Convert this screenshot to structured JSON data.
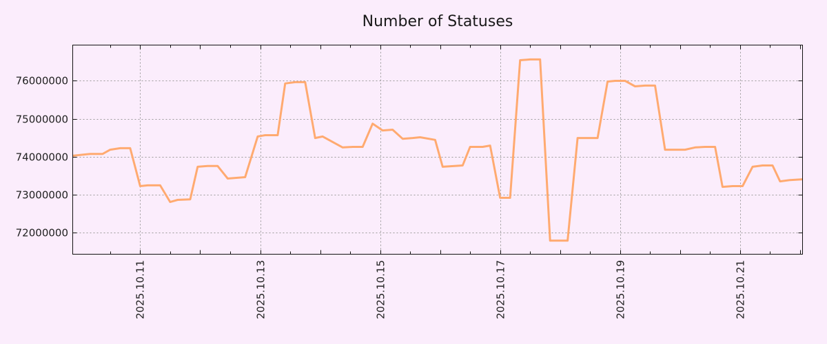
{
  "chart_data": {
    "type": "line",
    "title": "Number of Statuses",
    "xlabel": "",
    "ylabel": "",
    "x_unit": "hours since 2025-10-11 00:00",
    "xlim": [
      -27,
      265
    ],
    "ylim": [
      71420000,
      76945000
    ],
    "grid": true,
    "x_ticks": [
      {
        "label": "2025.10.11",
        "x": 0
      },
      {
        "label": "2025.10.13",
        "x": 48
      },
      {
        "label": "2025.10.15",
        "x": 96
      },
      {
        "label": "2025.10.17",
        "x": 144
      },
      {
        "label": "2025.10.19",
        "x": 192
      },
      {
        "label": "2025.10.21",
        "x": 240
      }
    ],
    "y_ticks": [
      {
        "label": "72000000",
        "y": 72000000
      },
      {
        "label": "73000000",
        "y": 73000000
      },
      {
        "label": "74000000",
        "y": 74000000
      },
      {
        "label": "75000000",
        "y": 75000000
      },
      {
        "label": "76000000",
        "y": 76000000
      }
    ],
    "series": [
      {
        "name": "Number of Statuses",
        "color": "#ffaa70",
        "x": [
          -27,
          -20,
          -15,
          -12,
          -8,
          -4,
          0,
          3,
          8,
          12,
          15,
          20,
          23,
          27,
          31,
          35,
          42,
          47,
          50,
          55,
          58,
          62,
          66,
          70,
          73,
          81,
          85,
          89,
          93,
          97,
          101,
          105,
          109,
          112,
          118,
          121,
          129,
          132,
          137,
          140,
          144,
          148,
          152,
          156,
          160,
          164,
          167,
          171,
          175,
          179,
          183,
          187,
          190,
          194,
          198,
          202,
          206,
          210,
          214,
          218,
          222,
          226,
          230,
          233,
          237,
          241,
          245,
          249,
          253,
          256,
          260,
          265
        ],
        "values": [
          74020000,
          74070000,
          74070000,
          74180000,
          74220000,
          74220000,
          73220000,
          73240000,
          73240000,
          72800000,
          72855000,
          72870000,
          73730000,
          73750000,
          73750000,
          73420000,
          73455000,
          74530000,
          74565000,
          74565000,
          75930000,
          75965000,
          75965000,
          74490000,
          74530000,
          74240000,
          74255000,
          74255000,
          74870000,
          74690000,
          74710000,
          74470000,
          74490000,
          74510000,
          74440000,
          73730000,
          73765000,
          74255000,
          74255000,
          74290000,
          72910000,
          72910000,
          76545000,
          76565000,
          76565000,
          71780000,
          71780000,
          71780000,
          74490000,
          74490000,
          74490000,
          75980000,
          76000000,
          76000000,
          75855000,
          75875000,
          75875000,
          74180000,
          74180000,
          74180000,
          74240000,
          74255000,
          74255000,
          73200000,
          73220000,
          73220000,
          73730000,
          73765000,
          73765000,
          73345000,
          73380000,
          73400000
        ]
      }
    ]
  }
}
